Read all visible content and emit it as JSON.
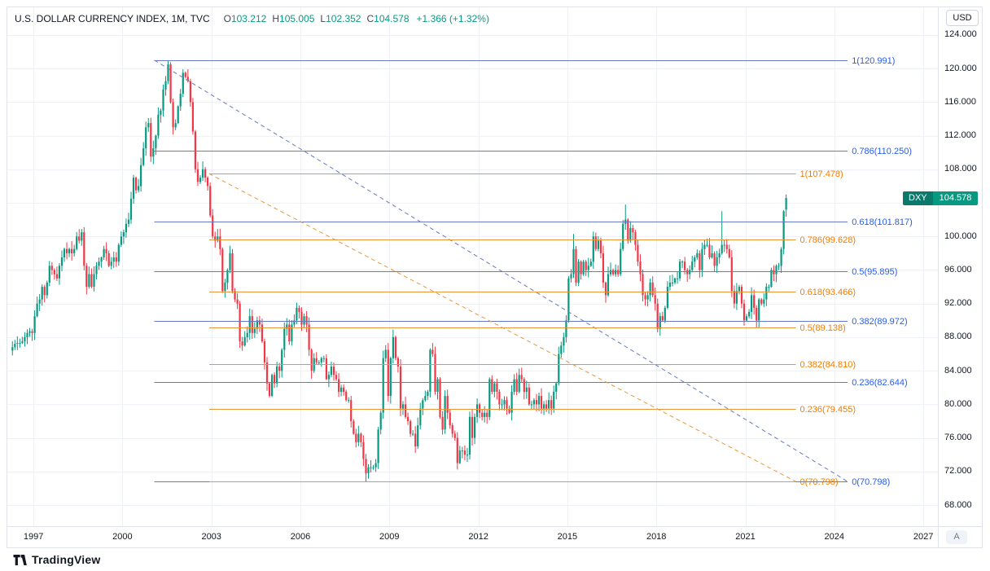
{
  "header": {
    "legend": {
      "title": "U.S. DOLLAR CURRENCY INDEX, 1M, TVC",
      "open_label": "O",
      "open": "103.212",
      "high_label": "H",
      "high": "105.005",
      "low_label": "L",
      "low": "102.352",
      "close_label": "C",
      "close": "104.578",
      "change": "+1.366 (+1.32%)"
    },
    "currency_button": "USD"
  },
  "price_axis": {
    "ticks": [
      "124.000",
      "120.000",
      "116.000",
      "112.000",
      "108.000",
      "104.000",
      "100.000",
      "96.000",
      "92.000",
      "88.000",
      "84.000",
      "80.000",
      "76.000",
      "72.000",
      "68.000"
    ],
    "price_label": {
      "symbol": "DXY",
      "value": "104.578",
      "color": "#089981"
    },
    "auto_button": "A"
  },
  "time_axis": {
    "ticks": [
      "1997",
      "2000",
      "2003",
      "2006",
      "2009",
      "2012",
      "2015",
      "2018",
      "2021",
      "2024",
      "2027"
    ]
  },
  "footer": {
    "brand": "TradingView"
  },
  "chart_data": {
    "type": "candlestick",
    "title": "U.S. DOLLAR CURRENCY INDEX",
    "symbol": "DXY",
    "timeframe": "1M",
    "exchange": "TVC",
    "currency": "USD",
    "x_domain": [
      1996.12,
      2027.49
    ],
    "y_domain": [
      65.58,
      127.29
    ],
    "up_color": "#089981",
    "down_color": "#f23645",
    "start_month": "1996-04",
    "monthly_closes": [
      86.8,
      87.2,
      87.3,
      87.3,
      87.5,
      88.0,
      88.5,
      88.7,
      88.5,
      90.5,
      92.0,
      92.5,
      94.0,
      93.0,
      94.5,
      96.5,
      96.0,
      95.5,
      95.0,
      96.5,
      97.5,
      98.5,
      98.0,
      98.5,
      98.0,
      98.5,
      100.0,
      99.5,
      100.5,
      96.5,
      94.0,
      95.5,
      94.0,
      95.5,
      96.5,
      97.0,
      97.5,
      98.5,
      98.0,
      96.5,
      97.0,
      97.5,
      97.0,
      99.0,
      100.0,
      100.5,
      101.5,
      102.0,
      104.5,
      107.0,
      105.5,
      106.0,
      108.5,
      110.5,
      113.0,
      113.5,
      109.5,
      110.5,
      112.0,
      114.5,
      115.0,
      117.5,
      118.5,
      120.5,
      116.0,
      113.0,
      113.5,
      115.5,
      117.0,
      119.5,
      119.0,
      118.5,
      116.0,
      112.5,
      108.0,
      106.5,
      107.0,
      108.0,
      107.0,
      106.0,
      102.5,
      100.0,
      99.5,
      100.0,
      98.5,
      93.5,
      94.5,
      96.0,
      98.0,
      93.5,
      92.5,
      92.0,
      87.5,
      87.0,
      88.0,
      88.5,
      90.5,
      88.5,
      89.0,
      90.0,
      89.5,
      87.5,
      85.0,
      82.5,
      81.0,
      83.5,
      82.5,
      84.5,
      84.0,
      86.5,
      89.0,
      89.5,
      87.5,
      89.5,
      90.0,
      91.5,
      91.0,
      89.5,
      90.5,
      89.5,
      86.5,
      84.0,
      85.5,
      85.0,
      85.0,
      85.5,
      85.5,
      83.0,
      83.5,
      84.5,
      83.5,
      83.0,
      81.5,
      82.0,
      81.5,
      80.5,
      80.5,
      78.0,
      76.5,
      75.5,
      76.5,
      75.5,
      73.5,
      71.8,
      72.5,
      72.5,
      72.5,
      73.0,
      77.0,
      79.0,
      85.5,
      86.5,
      81.0,
      85.5,
      88.0,
      85.5,
      84.5,
      79.5,
      80.0,
      78.5,
      78.0,
      76.5,
      76.5,
      75.0,
      77.5,
      79.5,
      80.5,
      81.0,
      81.5,
      86.5,
      86.0,
      81.5,
      83.0,
      78.5,
      77.0,
      81.0,
      79.0,
      77.5,
      76.5,
      76.0,
      73.0,
      74.5,
      74.5,
      74.0,
      74.0,
      78.5,
      76.0,
      78.5,
      80.0,
      79.0,
      78.5,
      79.0,
      78.5,
      83.0,
      81.5,
      82.5,
      81.5,
      80.0,
      80.0,
      80.5,
      79.5,
      79.0,
      81.5,
      83.0,
      81.5,
      83.5,
      83.0,
      81.5,
      82.0,
      80.0,
      80.0,
      80.5,
      80.0,
      81.0,
      79.5,
      80.0,
      79.5,
      80.5,
      79.5,
      81.5,
      82.5,
      86.0,
      87.0,
      88.0,
      90.0,
      95.0,
      95.5,
      98.5,
      94.5,
      97.0,
      95.5,
      97.0,
      96.0,
      96.5,
      97.0,
      100.0,
      98.5,
      99.5,
      98.0,
      94.5,
      93.0,
      95.5,
      96.0,
      95.5,
      96.0,
      95.5,
      98.5,
      101.5,
      102.0,
      99.5,
      101.0,
      100.5,
      99.0,
      97.0,
      95.5,
      93.0,
      92.5,
      93.0,
      94.5,
      93.0,
      92.0,
      89.0,
      90.5,
      90.0,
      91.5,
      94.0,
      94.5,
      94.5,
      95.0,
      95.0,
      97.0,
      97.0,
      96.0,
      95.5,
      96.0,
      97.0,
      97.5,
      98.0,
      96.0,
      98.5,
      99.0,
      99.0,
      97.5,
      98.0,
      96.5,
      97.5,
      98.0,
      99.0,
      99.0,
      98.5,
      97.5,
      93.5,
      92.0,
      93.5,
      94.0,
      92.0,
      90.0,
      90.5,
      91.0,
      93.0,
      91.5,
      90.0,
      92.5,
      92.0,
      92.5,
      94.0,
      94.0,
      96.0,
      95.5,
      96.5,
      96.5,
      98.5,
      103.0,
      104.578
    ],
    "wick_overrides": {
      "63": {
        "high": 120.991
      },
      "143": {
        "low": 70.798
      },
      "181": {
        "low": 72.9
      },
      "227": {
        "high": 100.3
      },
      "248": {
        "high": 103.8
      },
      "287": {
        "high": 102.99
      },
      "313": {
        "open": 103.212,
        "high": 105.005,
        "low": 102.352
      }
    },
    "fib_retracements": [
      {
        "name": "blue",
        "line_color": "#6679c4",
        "label_color": "#2a5cea",
        "t_start": 2001.08,
        "t_end": 2024.45,
        "levels": [
          {
            "label": "1(120.991)",
            "price": 120.991
          },
          {
            "label": "0.786(110.250)",
            "price": 110.25
          },
          {
            "label": "0.618(101.817)",
            "price": 101.817
          },
          {
            "label": "0.5(95.895)",
            "price": 95.895
          },
          {
            "label": "0.382(89.972)",
            "price": 89.972
          },
          {
            "label": "0.236(82.644)",
            "price": 82.644
          },
          {
            "label": "0(70.798)",
            "price": 70.798
          }
        ],
        "trend": {
          "t1": 2001.08,
          "p1": 120.991,
          "t2": 2024.45,
          "p2": 70.798
        }
      },
      {
        "name": "orange",
        "line_color": "#e8963e",
        "label_color": "#f57c00",
        "t_start": 2002.92,
        "t_end": 2022.7,
        "levels": [
          {
            "label": "1(107.478)",
            "price": 107.478
          },
          {
            "label": "0.786(99.628)",
            "price": 99.628
          },
          {
            "label": "0.618(93.466)",
            "price": 93.466
          },
          {
            "label": "0.5(89.138)",
            "price": 89.138
          },
          {
            "label": "0.382(84.810)",
            "price": 84.81
          },
          {
            "label": "0.236(79.455)",
            "price": 79.455
          },
          {
            "label": "0(70.798)",
            "price": 70.798
          }
        ],
        "trend": {
          "t1": 2002.92,
          "p1": 107.478,
          "t2": 2022.7,
          "p2": 70.798
        }
      }
    ]
  }
}
